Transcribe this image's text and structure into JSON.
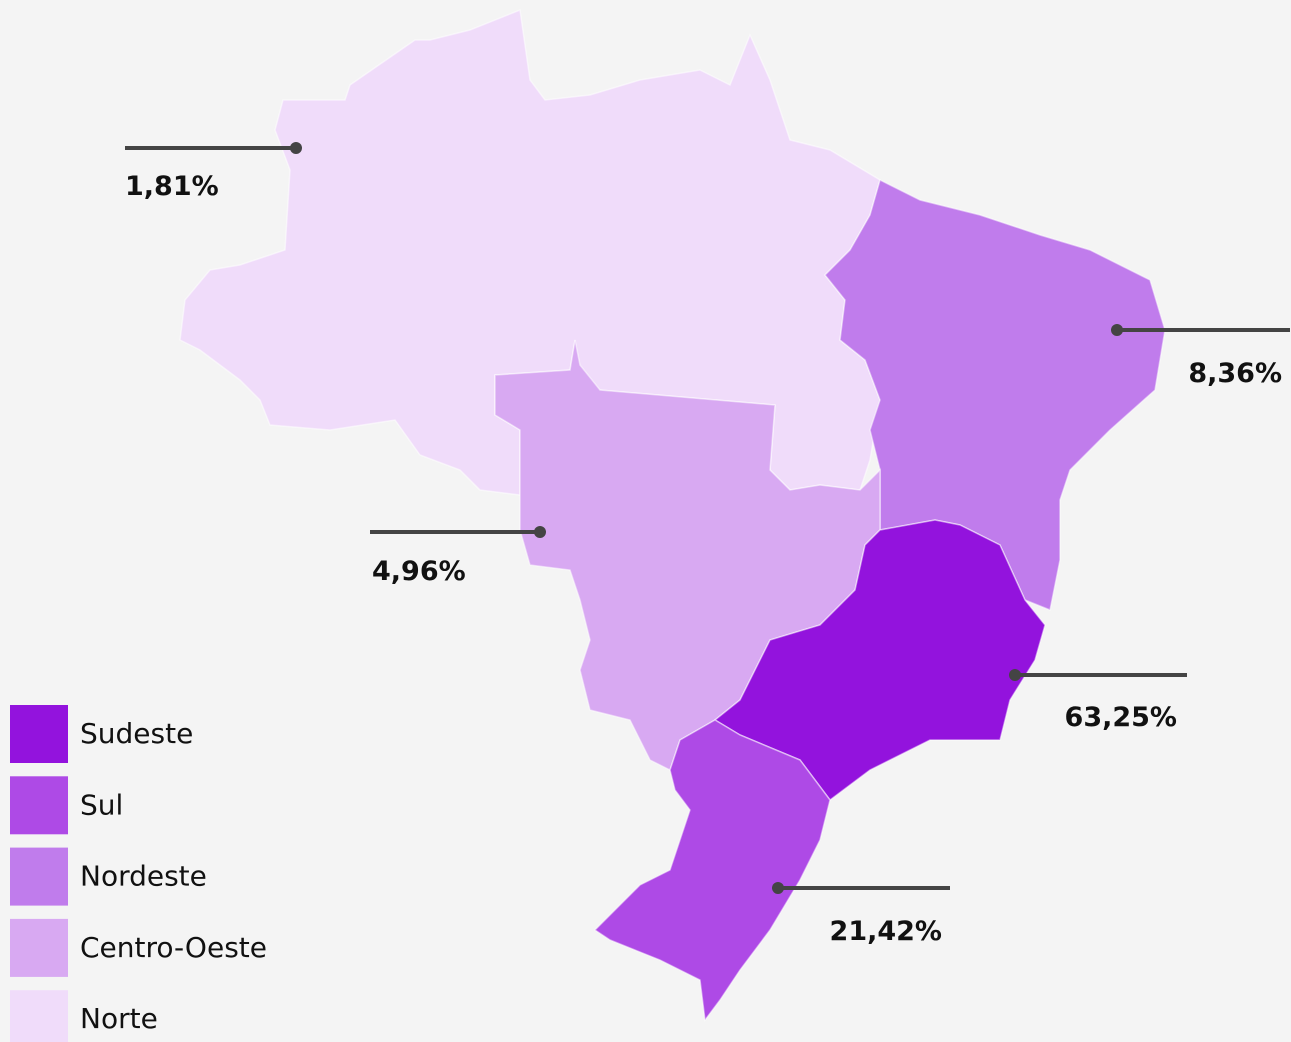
{
  "regions": [
    {
      "name": "Sudeste",
      "label": "63,25%",
      "color": "#9313dd"
    },
    {
      "name": "Sul",
      "label": "21,42%",
      "color": "#ae4ae6"
    },
    {
      "name": "Nordeste",
      "label": "8,36%",
      "color": "#c07cec"
    },
    {
      "name": "Centro-Oeste",
      "label": "4,96%",
      "color": "#d8a9f2"
    },
    {
      "name": "Norte",
      "label": "1,81%",
      "color": "#f0dcfa"
    }
  ]
}
